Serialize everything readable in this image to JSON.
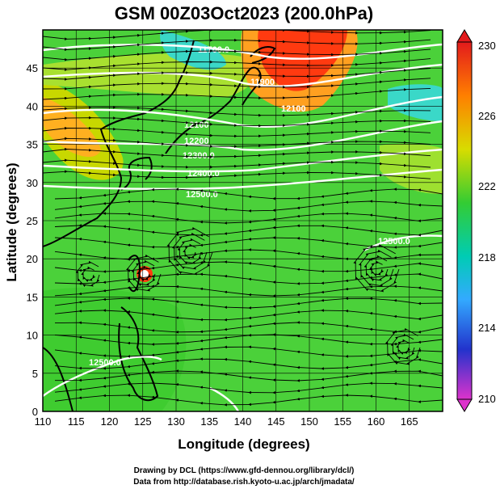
{
  "title": "GSM 00Z03Oct2023 (200.0hPa)",
  "x_axis": {
    "label": "Longitude (degrees)",
    "ticks": [
      "110",
      "115",
      "120",
      "125",
      "130",
      "135",
      "140",
      "145",
      "150",
      "155",
      "160",
      "165"
    ],
    "range": [
      110,
      170
    ]
  },
  "y_axis": {
    "label": "Latitude (degrees)",
    "ticks": [
      "0",
      "5",
      "10",
      "15",
      "20",
      "25",
      "30",
      "35",
      "40",
      "45"
    ],
    "range": [
      0,
      50
    ]
  },
  "colorbar": {
    "labels": [
      "230",
      "226",
      "222",
      "218",
      "214",
      "210"
    ],
    "colors": [
      "#e31a1c",
      "#ff7f00",
      "#c8d400",
      "#33cc33",
      "#00cc99",
      "#33aaff",
      "#2233cc",
      "#cc33cc"
    ]
  },
  "contour_labels": [
    "11700.0",
    "11900",
    "12100",
    "12200",
    "12300.0",
    "12400.0",
    "12500.0",
    "12100",
    "12500.0",
    "12500.0"
  ],
  "credits": {
    "line1": "Drawing by DCL (https://www.gfd-dennou.org/library/dcl/)",
    "line2": "Data from http://database.rish.kyoto-u.ac.jp/arch/jmadata/"
  },
  "colors": {
    "field_green": "#4bd13a",
    "warm": "#ffb020",
    "hot": "#ff3a10",
    "cool": "#3ad8c8",
    "coast": "#000000",
    "contour": "#ffffff"
  }
}
